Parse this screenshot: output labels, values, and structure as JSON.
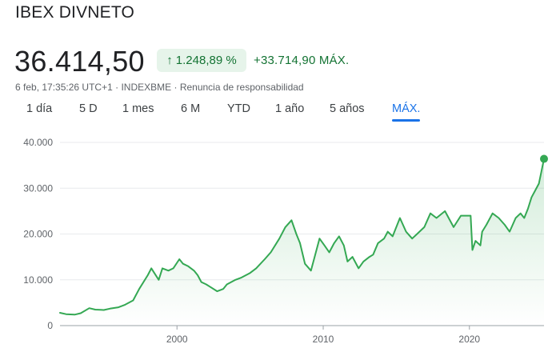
{
  "header": {
    "title": "IBEX DIVNETO",
    "price": "36.414,50",
    "change_percent": "1.248,89 %",
    "change_abs": "+33.714,90 MÁX.",
    "timestamp": "6 feb, 17:35:26 UTC+1",
    "separator": "·",
    "exchange": "INDEXBME",
    "disclaimer": "Renuncia de responsabilidad"
  },
  "colors": {
    "line": "#34a853",
    "positive": "#137333",
    "chip_bg": "#e6f4ea",
    "accent": "#1a73e8"
  },
  "tabs": [
    {
      "label": "1 día"
    },
    {
      "label": "5 D"
    },
    {
      "label": "1 mes"
    },
    {
      "label": "6 M"
    },
    {
      "label": "YTD"
    },
    {
      "label": "1 año"
    },
    {
      "label": "5 años"
    },
    {
      "label": "MÁX.",
      "active": true
    }
  ],
  "chart_data": {
    "type": "area",
    "title": "",
    "xlabel": "",
    "ylabel": "",
    "ylim": [
      0,
      40000
    ],
    "xlim": [
      "1992-01-01",
      "2025-02-06"
    ],
    "yticks": [
      0,
      10000,
      20000,
      30000,
      40000
    ],
    "ytick_labels": [
      "0",
      "10.000",
      "20.000",
      "30.000",
      "40.000"
    ],
    "xticks": [
      "2000-01-01",
      "2010-01-01",
      "2020-01-01"
    ],
    "xtick_labels": [
      "2000",
      "2010",
      "2020"
    ],
    "grid": true,
    "series": [
      {
        "x": [
          "1992-01-01",
          "1992-06-01",
          "1993-01-01",
          "1993-06-01",
          "1994-01-01",
          "1994-06-01",
          "1995-01-01",
          "1995-06-01",
          "1996-01-01",
          "1996-06-01",
          "1997-01-01",
          "1997-06-01",
          "1998-01-01",
          "1998-04-01",
          "1998-10-01",
          "1999-01-01",
          "1999-06-01",
          "1999-10-01",
          "2000-03-01",
          "2000-06-01",
          "2000-10-01",
          "2001-03-01",
          "2001-06-01",
          "2001-09-01",
          "2002-01-01",
          "2002-04-01",
          "2002-10-01",
          "2003-01-01",
          "2003-03-01",
          "2003-06-01",
          "2004-01-01",
          "2004-06-01",
          "2005-01-01",
          "2005-06-01",
          "2006-01-01",
          "2006-06-01",
          "2007-01-01",
          "2007-06-01",
          "2007-11-01",
          "2008-03-01",
          "2008-06-01",
          "2008-10-01",
          "2009-03-01",
          "2009-06-01",
          "2009-10-01",
          "2010-02-01",
          "2010-06-01",
          "2010-10-01",
          "2011-02-01",
          "2011-06-01",
          "2011-09-01",
          "2012-01-01",
          "2012-06-01",
          "2012-10-01",
          "2013-03-01",
          "2013-06-01",
          "2013-10-01",
          "2014-03-01",
          "2014-06-01",
          "2014-10-01",
          "2015-04-01",
          "2015-09-01",
          "2016-02-01",
          "2016-06-01",
          "2016-12-01",
          "2017-05-01",
          "2017-10-01",
          "2018-05-01",
          "2018-12-01",
          "2019-06-01",
          "2019-12-01",
          "2020-02-01",
          "2020-03-15",
          "2020-06-01",
          "2020-10-01",
          "2020-11-15",
          "2021-03-01",
          "2021-08-01",
          "2022-01-01",
          "2022-06-01",
          "2022-10-01",
          "2023-03-01",
          "2023-07-01",
          "2023-10-01",
          "2024-01-01",
          "2024-04-01",
          "2024-07-01",
          "2024-10-01",
          "2024-12-01",
          "2025-02-06"
        ],
        "values": [
          2800,
          2500,
          2400,
          2700,
          3800,
          3500,
          3400,
          3700,
          4000,
          4500,
          5500,
          8000,
          11000,
          12500,
          10000,
          12500,
          12000,
          12500,
          14500,
          13500,
          13000,
          12000,
          11000,
          9500,
          9000,
          8500,
          7500,
          7800,
          8000,
          9000,
          10000,
          10500,
          11500,
          12500,
          14500,
          16000,
          19000,
          21500,
          23000,
          20000,
          18000,
          13500,
          12000,
          15000,
          19000,
          17500,
          16000,
          18000,
          19500,
          17500,
          14000,
          15000,
          12500,
          14000,
          15000,
          15500,
          18000,
          19000,
          20500,
          19500,
          23500,
          20500,
          19000,
          20000,
          21500,
          24500,
          23500,
          25000,
          21500,
          24000,
          24000,
          24000,
          16500,
          18500,
          17500,
          20500,
          22000,
          24500,
          23500,
          22000,
          20500,
          23500,
          24500,
          23500,
          25500,
          28000,
          29500,
          31000,
          33500,
          36414.5
        ]
      }
    ],
    "last_value": 36414.5
  }
}
